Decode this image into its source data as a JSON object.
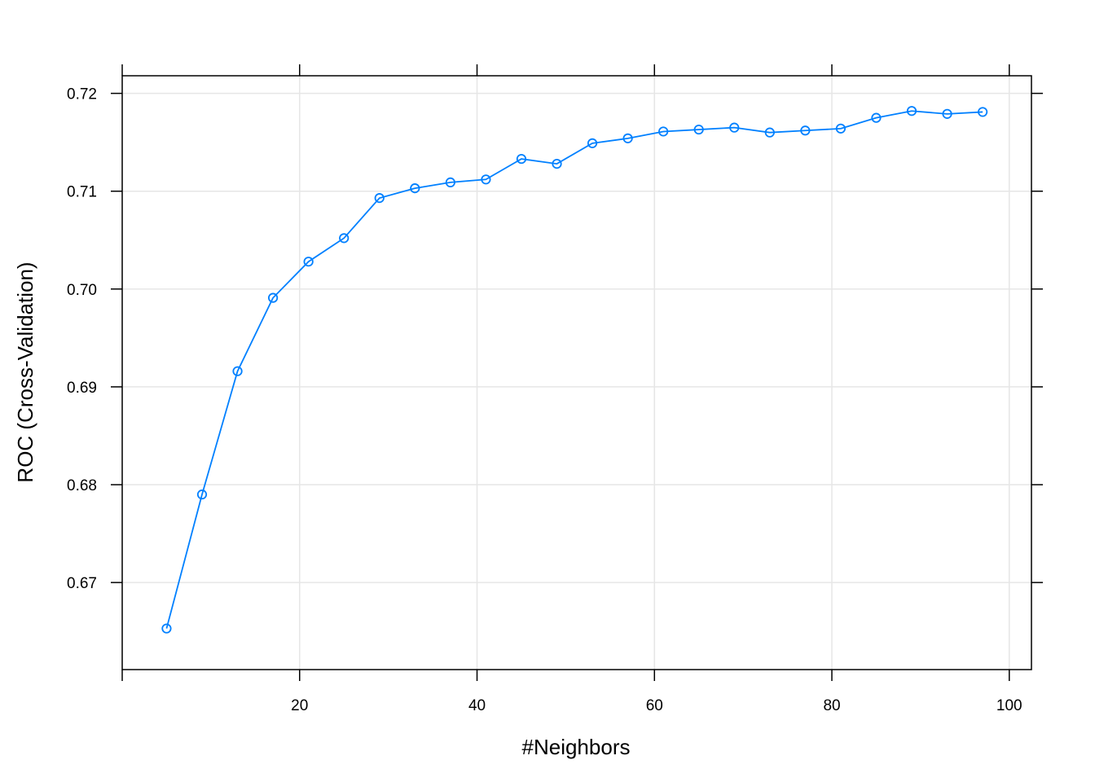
{
  "colors": {
    "series": "#0080ff",
    "grid": "#e6e6e6",
    "axis": "#000000"
  },
  "chart_data": {
    "type": "line",
    "title": "",
    "xlabel": "#Neighbors",
    "ylabel": "ROC (Cross-Validation)",
    "xlim": [
      0.0,
      102.5
    ],
    "ylim": [
      0.6611,
      0.7218
    ],
    "grid": true,
    "marker": "open-circle",
    "x_ticks": [
      {
        "value": 20,
        "label": "20"
      },
      {
        "value": 40,
        "label": "40"
      },
      {
        "value": 60,
        "label": "60"
      },
      {
        "value": 80,
        "label": "80"
      },
      {
        "value": 100,
        "label": "100"
      }
    ],
    "y_ticks": [
      {
        "value": 0.67,
        "label": "0.67"
      },
      {
        "value": 0.68,
        "label": "0.68"
      },
      {
        "value": 0.69,
        "label": "0.69"
      },
      {
        "value": 0.7,
        "label": "0.70"
      },
      {
        "value": 0.71,
        "label": "0.71"
      },
      {
        "value": 0.72,
        "label": "0.72"
      }
    ],
    "x": [
      5,
      9,
      13,
      17,
      21,
      25,
      29,
      33,
      37,
      41,
      45,
      49,
      53,
      57,
      61,
      65,
      69,
      73,
      77,
      81,
      85,
      89,
      93,
      97
    ],
    "values": [
      0.6653,
      0.679,
      0.6916,
      0.6991,
      0.7028,
      0.7052,
      0.7093,
      0.7103,
      0.7109,
      0.7112,
      0.7133,
      0.7128,
      0.7149,
      0.7154,
      0.7161,
      0.7163,
      0.7165,
      0.716,
      0.7162,
      0.7164,
      0.7175,
      0.7182,
      0.7179,
      0.7181
    ]
  }
}
